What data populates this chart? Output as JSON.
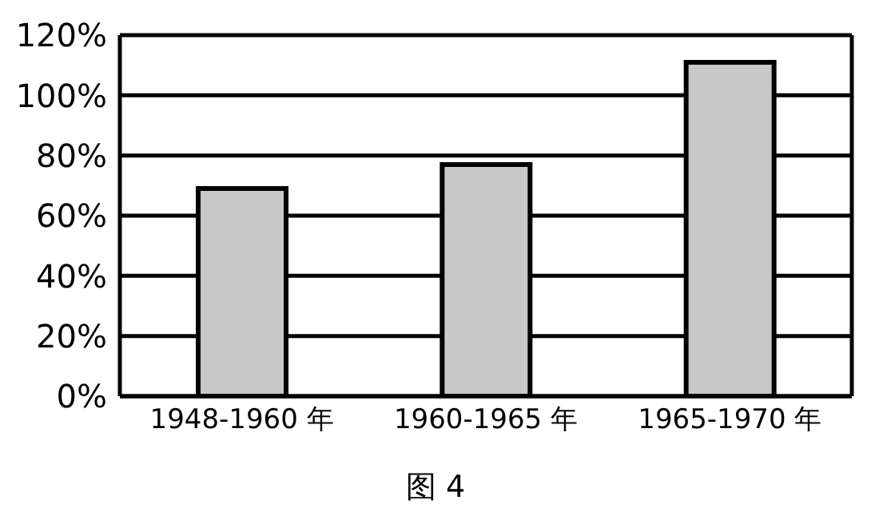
{
  "chart_data": {
    "type": "bar",
    "categories": [
      "1948-1960 年",
      "1960-1965 年",
      "1965-1970 年"
    ],
    "values": [
      69,
      77,
      111
    ],
    "color": "#c8c8c8",
    "ylim": [
      0,
      120
    ],
    "yticks": [
      {
        "value": 0,
        "label": "0%"
      },
      {
        "value": 20,
        "label": "20%"
      },
      {
        "value": 40,
        "label": "40%"
      },
      {
        "value": 60,
        "label": "60%"
      },
      {
        "value": 80,
        "label": "80%"
      },
      {
        "value": 100,
        "label": "100%"
      },
      {
        "value": 120,
        "label": "120%"
      }
    ],
    "grid": "y",
    "annotations": [
      "图 4"
    ]
  }
}
